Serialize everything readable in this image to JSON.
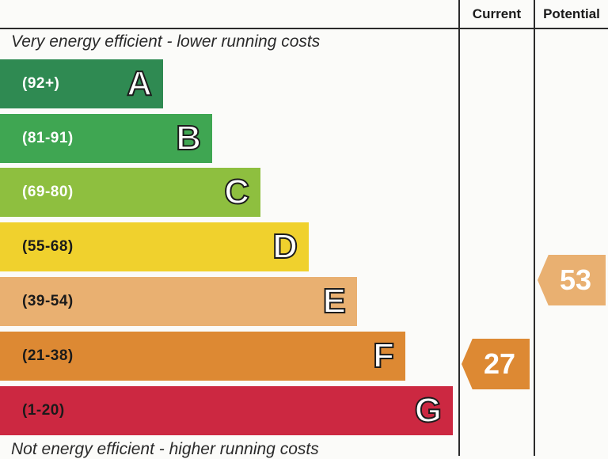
{
  "header": {
    "current_label": "Current",
    "potential_label": "Potential"
  },
  "captions": {
    "top": "Very energy efficient - lower running costs",
    "bottom": "Not energy efficient - higher running costs"
  },
  "chart_data": {
    "type": "bar",
    "bands": [
      {
        "letter": "A",
        "range": "(92+)",
        "color": "#2f8a52"
      },
      {
        "letter": "B",
        "range": "(81-91)",
        "color": "#3fa652"
      },
      {
        "letter": "C",
        "range": "(69-80)",
        "color": "#8ebf3f"
      },
      {
        "letter": "D",
        "range": "(55-68)",
        "color": "#f0d12d"
      },
      {
        "letter": "E",
        "range": "(39-54)",
        "color": "#e9b071"
      },
      {
        "letter": "F",
        "range": "(21-38)",
        "color": "#dd8933"
      },
      {
        "letter": "G",
        "range": "(1-20)",
        "color": "#cc2841"
      }
    ],
    "current": {
      "value": "27",
      "band": "F",
      "color": "#dd8933"
    },
    "potential": {
      "value": "53",
      "band": "E",
      "color": "#e9b071"
    }
  }
}
